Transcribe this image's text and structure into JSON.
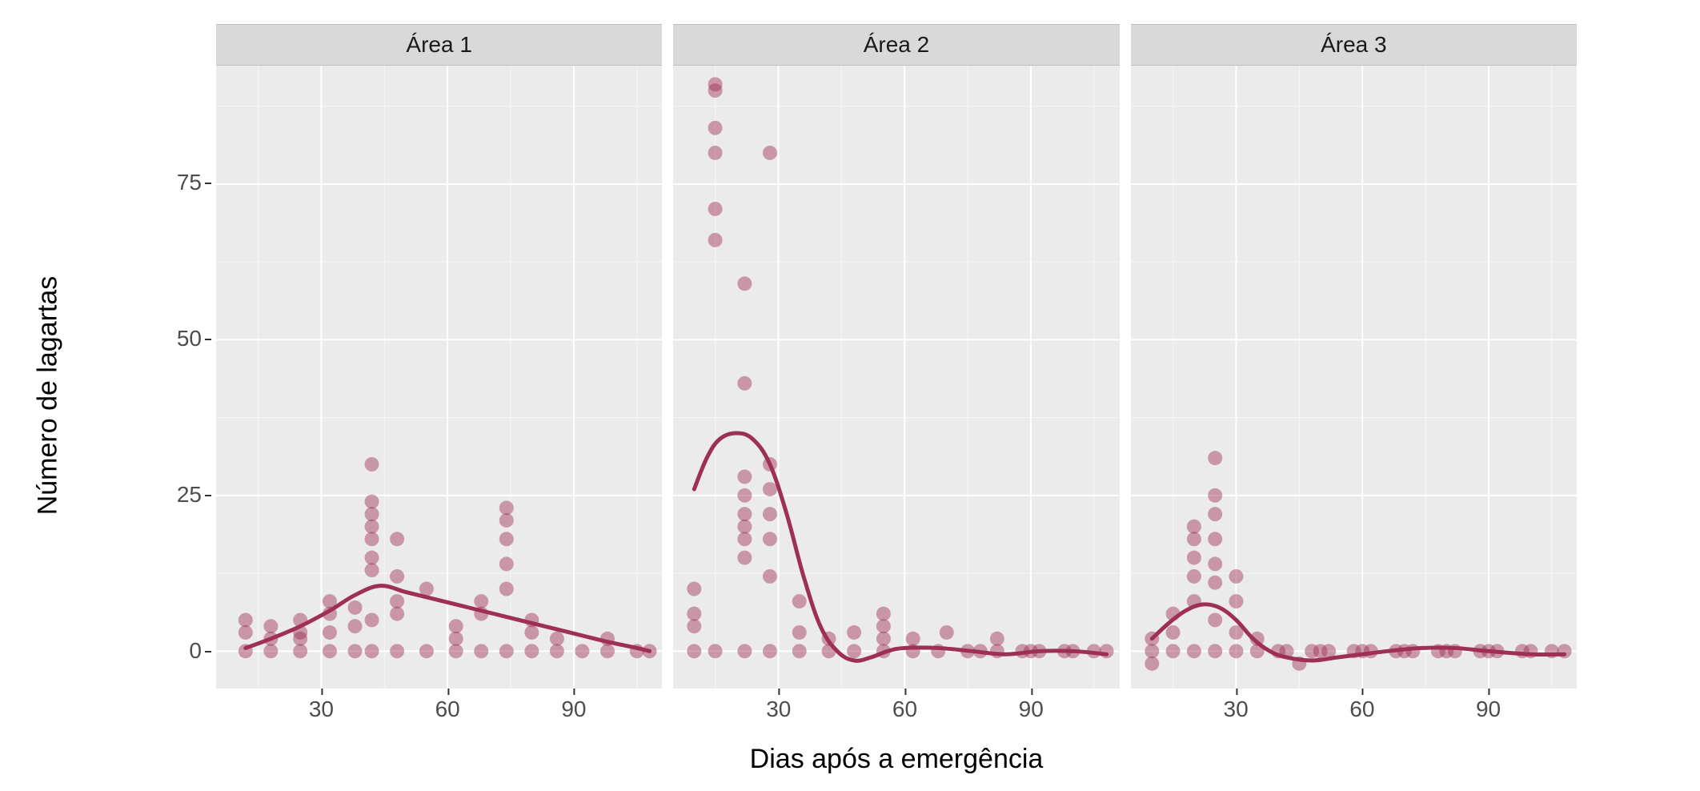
{
  "chart": {
    "type": "faceted-scatter-smooth",
    "x_label": "Dias após a emergência",
    "y_label": "Número de lagartas",
    "background_color": "#ffffff",
    "panel_background": "#ebebeb",
    "strip_background": "#d9d9d9",
    "gridline_major_color": "#ffffff",
    "gridline_minor_color": "#f5f5f5",
    "point_color": "#9e2f55",
    "point_opacity": 0.45,
    "point_radius": 9,
    "line_color": "#9e2f55",
    "line_width": 5,
    "axis_text_color": "#4d4d4d",
    "label_fontsize": 34,
    "tick_fontsize": 28,
    "strip_fontsize": 28,
    "xlim": [
      5,
      111
    ],
    "ylim": [
      -6,
      94
    ],
    "x_ticks": [
      30,
      60,
      90
    ],
    "y_ticks": [
      0,
      25,
      50,
      75
    ],
    "x_minor": [
      15,
      45,
      75,
      105
    ],
    "y_minor": [
      12.5,
      37.5,
      62.5,
      87.5
    ],
    "facets": [
      {
        "label": "Área 1",
        "points": [
          [
            12,
            0
          ],
          [
            12,
            3
          ],
          [
            12,
            5
          ],
          [
            18,
            0
          ],
          [
            18,
            2
          ],
          [
            18,
            4
          ],
          [
            25,
            0
          ],
          [
            25,
            2
          ],
          [
            25,
            3
          ],
          [
            25,
            5
          ],
          [
            32,
            0
          ],
          [
            32,
            3
          ],
          [
            32,
            6
          ],
          [
            32,
            8
          ],
          [
            38,
            0
          ],
          [
            38,
            4
          ],
          [
            38,
            7
          ],
          [
            42,
            0
          ],
          [
            42,
            5
          ],
          [
            42,
            13
          ],
          [
            42,
            15
          ],
          [
            42,
            18
          ],
          [
            42,
            20
          ],
          [
            42,
            22
          ],
          [
            42,
            24
          ],
          [
            42,
            30
          ],
          [
            48,
            0
          ],
          [
            48,
            6
          ],
          [
            48,
            8
          ],
          [
            48,
            12
          ],
          [
            48,
            18
          ],
          [
            55,
            0
          ],
          [
            55,
            10
          ],
          [
            62,
            0
          ],
          [
            62,
            2
          ],
          [
            62,
            4
          ],
          [
            68,
            0
          ],
          [
            68,
            6
          ],
          [
            68,
            8
          ],
          [
            74,
            0
          ],
          [
            74,
            10
          ],
          [
            74,
            14
          ],
          [
            74,
            18
          ],
          [
            74,
            21
          ],
          [
            74,
            23
          ],
          [
            80,
            0
          ],
          [
            80,
            3
          ],
          [
            80,
            5
          ],
          [
            86,
            0
          ],
          [
            86,
            2
          ],
          [
            92,
            0
          ],
          [
            98,
            0
          ],
          [
            98,
            2
          ],
          [
            105,
            0
          ],
          [
            108,
            0
          ]
        ],
        "smooth": [
          [
            12,
            0.5
          ],
          [
            18,
            2
          ],
          [
            25,
            4
          ],
          [
            32,
            6.5
          ],
          [
            38,
            9
          ],
          [
            44,
            10.5
          ],
          [
            50,
            9.5
          ],
          [
            56,
            8.5
          ],
          [
            62,
            7.5
          ],
          [
            68,
            6.5
          ],
          [
            74,
            5.5
          ],
          [
            80,
            4.5
          ],
          [
            86,
            3.5
          ],
          [
            92,
            2.5
          ],
          [
            98,
            1.5
          ],
          [
            105,
            0.5
          ],
          [
            108,
            0
          ]
        ]
      },
      {
        "label": "Área 2",
        "points": [
          [
            10,
            0
          ],
          [
            10,
            4
          ],
          [
            10,
            6
          ],
          [
            10,
            10
          ],
          [
            15,
            0
          ],
          [
            15,
            66
          ],
          [
            15,
            71
          ],
          [
            15,
            80
          ],
          [
            15,
            84
          ],
          [
            15,
            90
          ],
          [
            15,
            91
          ],
          [
            22,
            0
          ],
          [
            22,
            15
          ],
          [
            22,
            18
          ],
          [
            22,
            20
          ],
          [
            22,
            22
          ],
          [
            22,
            25
          ],
          [
            22,
            28
          ],
          [
            22,
            43
          ],
          [
            22,
            59
          ],
          [
            28,
            0
          ],
          [
            28,
            12
          ],
          [
            28,
            18
          ],
          [
            28,
            22
          ],
          [
            28,
            26
          ],
          [
            28,
            30
          ],
          [
            28,
            80
          ],
          [
            35,
            0
          ],
          [
            35,
            3
          ],
          [
            35,
            8
          ],
          [
            42,
            0
          ],
          [
            42,
            2
          ],
          [
            48,
            0
          ],
          [
            48,
            3
          ],
          [
            55,
            0
          ],
          [
            55,
            2
          ],
          [
            55,
            4
          ],
          [
            55,
            6
          ],
          [
            62,
            0
          ],
          [
            62,
            2
          ],
          [
            68,
            0
          ],
          [
            70,
            3
          ],
          [
            75,
            0
          ],
          [
            78,
            0
          ],
          [
            82,
            0
          ],
          [
            82,
            2
          ],
          [
            88,
            0
          ],
          [
            90,
            0
          ],
          [
            92,
            0
          ],
          [
            98,
            0
          ],
          [
            100,
            0
          ],
          [
            105,
            0
          ],
          [
            108,
            0
          ]
        ],
        "smooth": [
          [
            10,
            26
          ],
          [
            13,
            31
          ],
          [
            16,
            34
          ],
          [
            20,
            35
          ],
          [
            24,
            34
          ],
          [
            28,
            30
          ],
          [
            32,
            22
          ],
          [
            36,
            12
          ],
          [
            40,
            4
          ],
          [
            44,
            0
          ],
          [
            48,
            -1.5
          ],
          [
            52,
            -1
          ],
          [
            56,
            0
          ],
          [
            60,
            0.5
          ],
          [
            68,
            0.5
          ],
          [
            76,
            0
          ],
          [
            84,
            -0.5
          ],
          [
            92,
            0
          ],
          [
            100,
            0
          ],
          [
            108,
            -0.5
          ]
        ]
      },
      {
        "label": "Área 3",
        "points": [
          [
            10,
            0
          ],
          [
            10,
            2
          ],
          [
            10,
            -2
          ],
          [
            15,
            0
          ],
          [
            15,
            3
          ],
          [
            15,
            6
          ],
          [
            20,
            0
          ],
          [
            20,
            8
          ],
          [
            20,
            12
          ],
          [
            20,
            15
          ],
          [
            20,
            18
          ],
          [
            20,
            20
          ],
          [
            25,
            0
          ],
          [
            25,
            5
          ],
          [
            25,
            11
          ],
          [
            25,
            14
          ],
          [
            25,
            18
          ],
          [
            25,
            22
          ],
          [
            25,
            25
          ],
          [
            25,
            31
          ],
          [
            30,
            0
          ],
          [
            30,
            3
          ],
          [
            30,
            8
          ],
          [
            30,
            12
          ],
          [
            35,
            0
          ],
          [
            35,
            2
          ],
          [
            40,
            0
          ],
          [
            42,
            0
          ],
          [
            45,
            -2
          ],
          [
            48,
            0
          ],
          [
            50,
            0
          ],
          [
            52,
            0
          ],
          [
            58,
            0
          ],
          [
            60,
            0
          ],
          [
            62,
            0
          ],
          [
            68,
            0
          ],
          [
            70,
            0
          ],
          [
            72,
            0
          ],
          [
            78,
            0
          ],
          [
            80,
            0
          ],
          [
            82,
            0
          ],
          [
            88,
            0
          ],
          [
            90,
            0
          ],
          [
            92,
            0
          ],
          [
            98,
            0
          ],
          [
            100,
            0
          ],
          [
            105,
            0
          ],
          [
            108,
            0
          ]
        ],
        "smooth": [
          [
            10,
            2
          ],
          [
            14,
            4.5
          ],
          [
            18,
            6.5
          ],
          [
            22,
            7.5
          ],
          [
            26,
            7
          ],
          [
            30,
            5
          ],
          [
            34,
            2
          ],
          [
            38,
            0
          ],
          [
            42,
            -1
          ],
          [
            48,
            -1.5
          ],
          [
            54,
            -1
          ],
          [
            60,
            -0.5
          ],
          [
            66,
            0
          ],
          [
            74,
            0.5
          ],
          [
            82,
            0.5
          ],
          [
            90,
            0
          ],
          [
            100,
            -0.5
          ],
          [
            108,
            -0.5
          ]
        ]
      }
    ]
  }
}
